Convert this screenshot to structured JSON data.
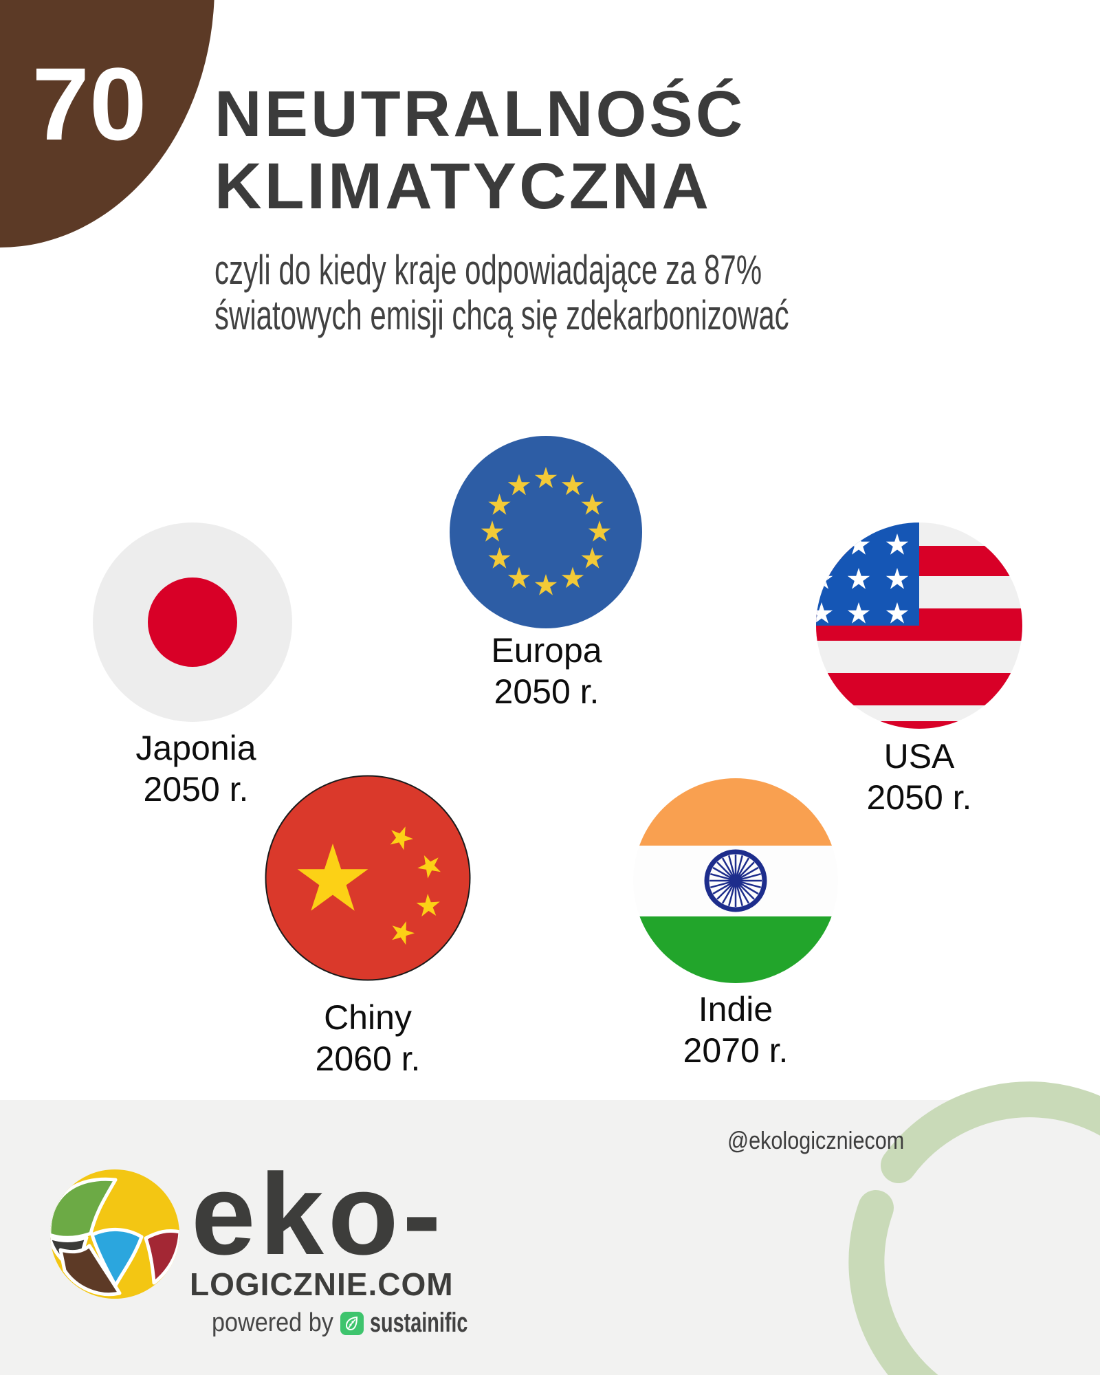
{
  "badge": {
    "number": "70"
  },
  "header": {
    "title_line1": "NEUTRALNOŚĆ",
    "title_line2": "KLIMATYCZNA",
    "subtitle_line1": "czyli do kiedy kraje odpowiadające za 87%",
    "subtitle_line2": "światowych emisji chcą się zdekarbonizować"
  },
  "countries": [
    {
      "name": "Japonia",
      "year": "2050 r.",
      "flag": "japan-flag"
    },
    {
      "name": "Europa",
      "year": "2050 r.",
      "flag": "eu-flag"
    },
    {
      "name": "USA",
      "year": "2050 r.",
      "flag": "usa-flag"
    },
    {
      "name": "Chiny",
      "year": "2060 r.",
      "flag": "china-flag"
    },
    {
      "name": "Indie",
      "year": "2070 r.",
      "flag": "india-flag"
    }
  ],
  "footer": {
    "handle": "@ekologiczniecom",
    "logo_text_line1": "eko-",
    "logo_text_line2": "LOGICZNIE.COM",
    "powered_by_label": "powered by",
    "powered_brand": "sustainific"
  },
  "colors": {
    "accent_brown": "#5c3a26",
    "title_text": "#3b3b3b",
    "footer_bg": "#f2f2f1",
    "arc_green": "#c9dab8",
    "flag_red": "#d80027",
    "flag_white": "#f0f0f0",
    "japan_bg": "#ededed",
    "us_blue": "#1556b5",
    "eu_blue": "#2d5da5",
    "star_gold": "#f3ca37",
    "china_red": "#da392b",
    "china_gold": "#fcd116",
    "china_outline": "#1a1a1a",
    "india_orange": "#f9a050",
    "india_white": "#fdfdfd",
    "india_green": "#22a52b",
    "india_navy": "#1d2d8c",
    "logo_yellow": "#f3c613",
    "logo_green": "#6caa45",
    "logo_blue": "#2ba6de",
    "logo_brown": "#5d3a26",
    "logo_red": "#a32734",
    "logo_gray": "#3a3a38",
    "sustainific_green": "#3ec46d"
  }
}
